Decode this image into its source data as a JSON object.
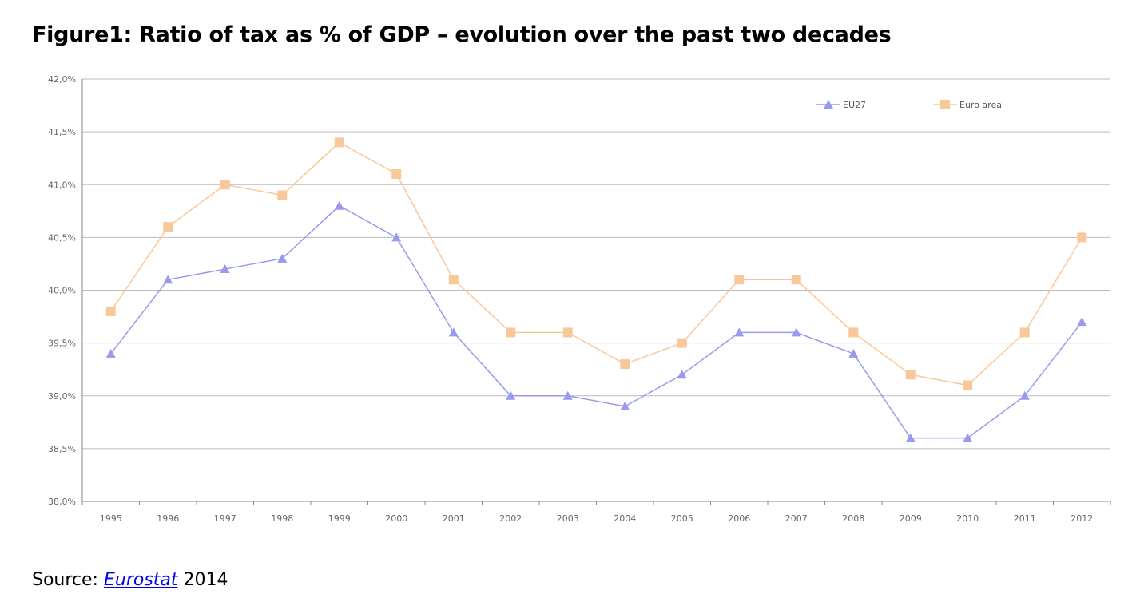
{
  "title": "Figure1: Ratio of tax as % of GDP – evolution over the past two decades",
  "source": {
    "prefix": "Source: ",
    "link": "Eurostat",
    "suffix": " 2014"
  },
  "chart_data": {
    "type": "line",
    "categories": [
      "1995",
      "1996",
      "1997",
      "1998",
      "1999",
      "2000",
      "2001",
      "2002",
      "2003",
      "2004",
      "2005",
      "2006",
      "2007",
      "2008",
      "2009",
      "2010",
      "2011",
      "2012"
    ],
    "ylim": [
      38.0,
      42.0
    ],
    "yticks": [
      38.0,
      38.5,
      39.0,
      39.5,
      40.0,
      40.5,
      41.0,
      41.5,
      42.0
    ],
    "ytick_labels": [
      "38,0%",
      "38,5%",
      "39,0%",
      "39,5%",
      "40,0%",
      "40,5%",
      "41,0%",
      "41,5%",
      "42,0%"
    ],
    "grid": "horizontal",
    "legend_position": "top-right",
    "series": [
      {
        "name": "EU27",
        "color": "#9999ee",
        "marker": "triangle",
        "values": [
          39.4,
          40.1,
          40.2,
          40.3,
          40.8,
          40.5,
          39.6,
          39.0,
          39.0,
          38.9,
          39.2,
          39.6,
          39.6,
          39.4,
          38.6,
          38.6,
          39.0,
          39.7
        ]
      },
      {
        "name": "Euro area",
        "color": "#f9c89a",
        "marker": "square",
        "values": [
          39.8,
          40.6,
          41.0,
          40.9,
          41.4,
          41.1,
          40.1,
          39.6,
          39.6,
          39.3,
          39.5,
          40.1,
          40.1,
          39.6,
          39.2,
          39.1,
          39.6,
          40.5
        ]
      }
    ]
  }
}
